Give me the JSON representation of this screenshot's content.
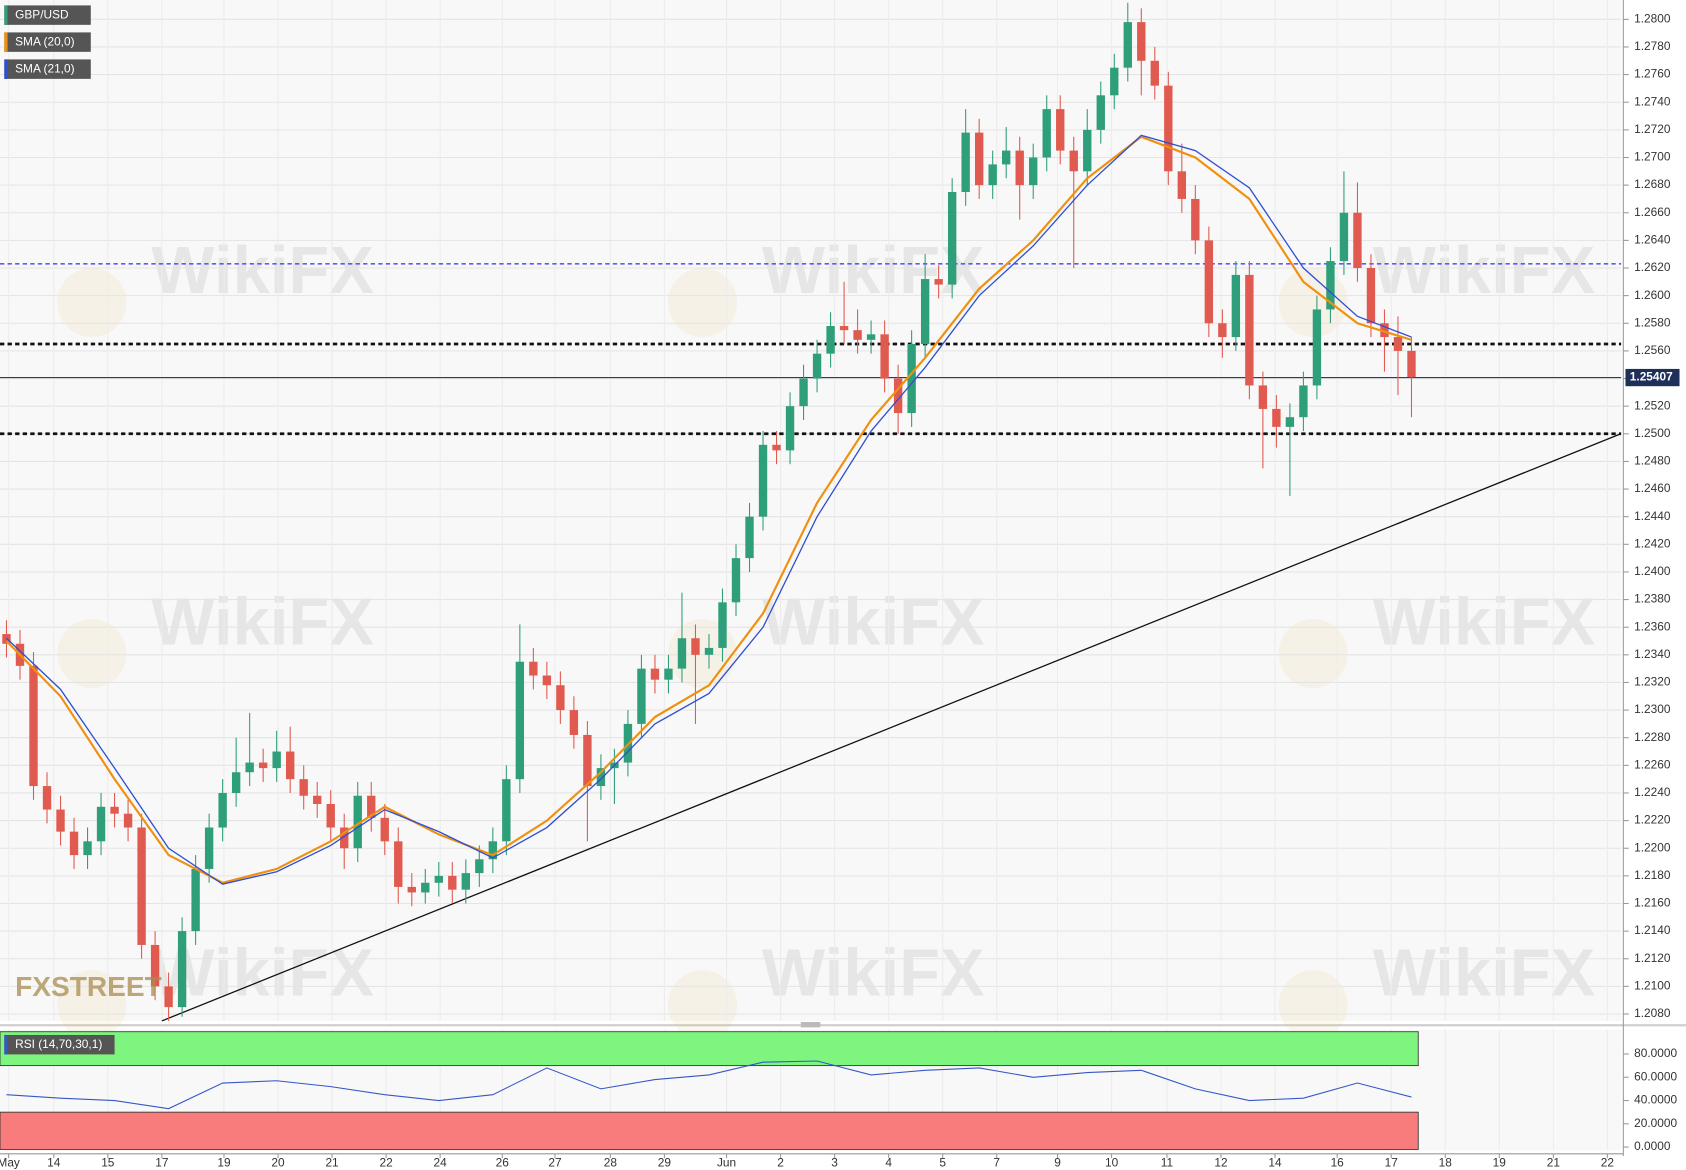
{
  "chart_data": [
    {
      "type": "candlestick",
      "symbol": "GBP/USD",
      "logo": "FXSTREET",
      "watermark": "WikiFX",
      "up_color": "#2f9e7a",
      "down_color": "#e05a4f",
      "grid": true,
      "xlim": [
        -0.48,
        119.52
      ],
      "ylim": [
        1.2075,
        1.2814
      ],
      "yticks": [
        {
          "value": 1.208,
          "label": "1.2080"
        },
        {
          "value": 1.21,
          "label": "1.2100"
        },
        {
          "value": 1.212,
          "label": "1.2120"
        },
        {
          "value": 1.214,
          "label": "1.2140"
        },
        {
          "value": 1.216,
          "label": "1.2160"
        },
        {
          "value": 1.218,
          "label": "1.2180"
        },
        {
          "value": 1.22,
          "label": "1.2200"
        },
        {
          "value": 1.222,
          "label": "1.2220"
        },
        {
          "value": 1.224,
          "label": "1.2240"
        },
        {
          "value": 1.226,
          "label": "1.2260"
        },
        {
          "value": 1.228,
          "label": "1.2280"
        },
        {
          "value": 1.23,
          "label": "1.2300"
        },
        {
          "value": 1.232,
          "label": "1.2320"
        },
        {
          "value": 1.234,
          "label": "1.2340"
        },
        {
          "value": 1.236,
          "label": "1.2360"
        },
        {
          "value": 1.238,
          "label": "1.2380"
        },
        {
          "value": 1.24,
          "label": "1.2400"
        },
        {
          "value": 1.242,
          "label": "1.2420"
        },
        {
          "value": 1.244,
          "label": "1.2440"
        },
        {
          "value": 1.246,
          "label": "1.2460"
        },
        {
          "value": 1.248,
          "label": "1.2480"
        },
        {
          "value": 1.25,
          "label": "1.2500"
        },
        {
          "value": 1.252,
          "label": "1.2520"
        },
        {
          "value": 1.254,
          "label": "1.2540"
        },
        {
          "value": 1.256,
          "label": "1.2560"
        },
        {
          "value": 1.258,
          "label": "1.2580"
        },
        {
          "value": 1.26,
          "label": "1.2600"
        },
        {
          "value": 1.262,
          "label": "1.2620"
        },
        {
          "value": 1.264,
          "label": "1.2640"
        },
        {
          "value": 1.266,
          "label": "1.2660"
        },
        {
          "value": 1.268,
          "label": "1.2680"
        },
        {
          "value": 1.27,
          "label": "1.2700"
        },
        {
          "value": 1.272,
          "label": "1.2720"
        },
        {
          "value": 1.274,
          "label": "1.2740"
        },
        {
          "value": 1.276,
          "label": "1.2760"
        },
        {
          "value": 1.278,
          "label": "1.2780"
        },
        {
          "value": 1.28,
          "label": "1.2800"
        }
      ],
      "open": [
        1.2355,
        1.2348,
        1.2332,
        1.2245,
        1.2228,
        1.2212,
        1.2195,
        1.2205,
        1.223,
        1.2225,
        1.2215,
        1.213,
        1.21,
        1.2085,
        1.214,
        1.2185,
        1.2215,
        1.224,
        1.2255,
        1.2262,
        1.2258,
        1.227,
        1.225,
        1.2238,
        1.2232,
        1.2215,
        1.22,
        1.2238,
        1.2222,
        1.2205,
        1.2172,
        1.2168,
        1.2175,
        1.218,
        1.217,
        1.2182,
        1.2192,
        1.2205,
        1.225,
        1.2335,
        1.2325,
        1.2318,
        1.23,
        1.2282,
        1.2245,
        1.2258,
        1.2262,
        1.229,
        1.233,
        1.2322,
        1.233,
        1.2352,
        1.234,
        1.2345,
        1.2378,
        1.241,
        1.244,
        1.2492,
        1.2488,
        1.252,
        1.254,
        1.2558,
        1.2578,
        1.2575,
        1.2568,
        1.2572,
        1.254,
        1.2515,
        1.2565,
        1.2612,
        1.2608,
        1.2675,
        1.2718,
        1.268,
        1.2695,
        1.2705,
        1.268,
        1.27,
        1.2735,
        1.2705,
        1.269,
        1.272,
        1.2745,
        1.2765,
        1.2798,
        1.277,
        1.2752,
        1.269,
        1.267,
        1.264,
        1.258,
        1.257,
        1.2615,
        1.2535,
        1.2518,
        1.2505,
        1.2512,
        1.2535,
        1.259,
        1.2625,
        1.266,
        1.262,
        1.258,
        1.257,
        1.256
      ],
      "high": [
        1.2365,
        1.2358,
        1.2342,
        1.2255,
        1.2238,
        1.2222,
        1.2215,
        1.224,
        1.224,
        1.2235,
        1.2225,
        1.214,
        1.211,
        1.215,
        1.2195,
        1.2225,
        1.225,
        1.228,
        1.2298,
        1.2272,
        1.2285,
        1.2288,
        1.226,
        1.2248,
        1.2242,
        1.2225,
        1.2248,
        1.2248,
        1.2232,
        1.2215,
        1.2182,
        1.2185,
        1.219,
        1.219,
        1.2192,
        1.2202,
        1.2215,
        1.226,
        1.2362,
        1.2345,
        1.2335,
        1.2328,
        1.231,
        1.2292,
        1.2268,
        1.2272,
        1.23,
        1.234,
        1.234,
        1.234,
        1.2385,
        1.2362,
        1.2355,
        1.2388,
        1.242,
        1.245,
        1.2502,
        1.2502,
        1.253,
        1.255,
        1.2568,
        1.2588,
        1.261,
        1.259,
        1.2582,
        1.2582,
        1.255,
        1.2575,
        1.263,
        1.2622,
        1.2685,
        1.2735,
        1.2728,
        1.2705,
        1.2722,
        1.2715,
        1.271,
        1.2745,
        1.2745,
        1.2715,
        1.2735,
        1.2755,
        1.2775,
        1.2812,
        1.2808,
        1.278,
        1.2762,
        1.271,
        1.268,
        1.265,
        1.259,
        1.2625,
        1.2625,
        1.2545,
        1.2528,
        1.2522,
        1.2545,
        1.26,
        1.2635,
        1.269,
        1.2682,
        1.263,
        1.259,
        1.2585,
        1.257
      ],
      "low": [
        1.2338,
        1.2322,
        1.2235,
        1.2218,
        1.2202,
        1.2185,
        1.2185,
        1.2195,
        1.2215,
        1.2205,
        1.212,
        1.209,
        1.2075,
        1.2078,
        1.213,
        1.2175,
        1.2205,
        1.223,
        1.2245,
        1.2248,
        1.2248,
        1.224,
        1.2228,
        1.2222,
        1.2205,
        1.2185,
        1.219,
        1.2212,
        1.2195,
        1.216,
        1.2158,
        1.216,
        1.2165,
        1.216,
        1.216,
        1.2172,
        1.2182,
        1.2195,
        1.224,
        1.2315,
        1.2308,
        1.229,
        1.2272,
        1.2205,
        1.2235,
        1.2232,
        1.2252,
        1.228,
        1.2312,
        1.2312,
        1.232,
        1.229,
        1.233,
        1.2335,
        1.2368,
        1.24,
        1.243,
        1.2478,
        1.2478,
        1.251,
        1.253,
        1.2548,
        1.2565,
        1.2558,
        1.2558,
        1.253,
        1.25,
        1.2505,
        1.2555,
        1.2598,
        1.2598,
        1.2665,
        1.267,
        1.267,
        1.2685,
        1.2655,
        1.267,
        1.269,
        1.2695,
        1.262,
        1.268,
        1.271,
        1.2735,
        1.2755,
        1.2745,
        1.2742,
        1.268,
        1.266,
        1.263,
        1.257,
        1.2555,
        1.256,
        1.2525,
        1.2475,
        1.249,
        1.2455,
        1.2502,
        1.2525,
        1.258,
        1.2615,
        1.261,
        1.257,
        1.2545,
        1.2528,
        1.2512
      ],
      "close": [
        1.2348,
        1.2332,
        1.2245,
        1.2228,
        1.2212,
        1.2195,
        1.2205,
        1.223,
        1.2225,
        1.2215,
        1.213,
        1.21,
        1.2085,
        1.214,
        1.2185,
        1.2215,
        1.224,
        1.2255,
        1.2262,
        1.2258,
        1.227,
        1.225,
        1.2238,
        1.2232,
        1.2215,
        1.22,
        1.2238,
        1.2222,
        1.2205,
        1.2172,
        1.2168,
        1.2175,
        1.218,
        1.217,
        1.2182,
        1.2192,
        1.2205,
        1.225,
        1.2335,
        1.2325,
        1.2318,
        1.23,
        1.2282,
        1.2245,
        1.2258,
        1.2262,
        1.229,
        1.233,
        1.2322,
        1.233,
        1.2352,
        1.234,
        1.2345,
        1.2378,
        1.241,
        1.244,
        1.2492,
        1.2488,
        1.252,
        1.254,
        1.2558,
        1.2578,
        1.2575,
        1.2568,
        1.2572,
        1.254,
        1.2515,
        1.2565,
        1.2612,
        1.2608,
        1.2675,
        1.2718,
        1.268,
        1.2695,
        1.2705,
        1.268,
        1.27,
        1.2735,
        1.2705,
        1.269,
        1.272,
        1.2745,
        1.2765,
        1.2798,
        1.277,
        1.2752,
        1.269,
        1.267,
        1.264,
        1.258,
        1.257,
        1.2615,
        1.2535,
        1.2518,
        1.2505,
        1.2512,
        1.2535,
        1.259,
        1.2625,
        1.266,
        1.262,
        1.258,
        1.257,
        1.256,
        1.2541
      ],
      "series": [
        {
          "name": "SMA (20,0)",
          "color": "#f0900f",
          "x": [
            0,
            4,
            8,
            12,
            16,
            20,
            24,
            28,
            32,
            36,
            40,
            44,
            48,
            52,
            56,
            60,
            64,
            68,
            72,
            76,
            80,
            84,
            88,
            92,
            96,
            100,
            104
          ],
          "values": [
            1.235,
            1.231,
            1.225,
            1.2195,
            1.2175,
            1.2185,
            1.2205,
            1.223,
            1.221,
            1.2195,
            1.222,
            1.2255,
            1.2295,
            1.2318,
            1.237,
            1.245,
            1.251,
            1.2555,
            1.2605,
            1.264,
            1.2685,
            1.2715,
            1.27,
            1.267,
            1.261,
            1.258,
            1.2568
          ]
        },
        {
          "name": "SMA (21,0)",
          "color": "#2f4fd0",
          "x": [
            0,
            4,
            8,
            12,
            16,
            20,
            24,
            28,
            32,
            36,
            40,
            44,
            48,
            52,
            56,
            60,
            64,
            68,
            72,
            76,
            80,
            84,
            88,
            92,
            96,
            100,
            104
          ],
          "values": [
            1.2352,
            1.2315,
            1.2258,
            1.22,
            1.2174,
            1.2183,
            1.2202,
            1.2228,
            1.2212,
            1.2193,
            1.2215,
            1.225,
            1.229,
            1.2312,
            1.236,
            1.244,
            1.2502,
            1.2548,
            1.26,
            1.2636,
            1.268,
            1.2716,
            1.2705,
            1.2678,
            1.262,
            1.2585,
            1.257
          ]
        }
      ],
      "levels": [
        {
          "value": 1.2623,
          "color": "#5a5aff",
          "style": "dotted"
        },
        {
          "value": 1.2565,
          "color": "#111111",
          "style": "dotted"
        },
        {
          "value": 1.25,
          "color": "#111111",
          "style": "dotted"
        }
      ],
      "trendline": {
        "x": [
          11.5,
          119.5
        ],
        "values": [
          1.2075,
          1.25
        ]
      },
      "last_price": 1.25407
    },
    {
      "type": "line",
      "xlim": [
        -0.48,
        119.52
      ],
      "ylim": [
        -3,
        101
      ],
      "yticks": [
        {
          "value": 0,
          "label": "0.0000"
        },
        {
          "value": 20,
          "label": "20.0000"
        },
        {
          "value": 40,
          "label": "40.0000"
        },
        {
          "value": 60,
          "label": "60.0000"
        },
        {
          "value": 80,
          "label": "80.0000"
        }
      ],
      "xticks": [
        {
          "value": 0.16,
          "label": "May"
        },
        {
          "value": 3.5,
          "label": "14"
        },
        {
          "value": 7.5,
          "label": "15"
        },
        {
          "value": 11.5,
          "label": "17"
        },
        {
          "value": 16.1,
          "label": "19"
        },
        {
          "value": 20.1,
          "label": "20"
        },
        {
          "value": 24.1,
          "label": "21"
        },
        {
          "value": 28.1,
          "label": "22"
        },
        {
          "value": 32.1,
          "label": "24"
        },
        {
          "value": 36.7,
          "label": "26"
        },
        {
          "value": 40.6,
          "label": "27"
        },
        {
          "value": 44.7,
          "label": "28"
        },
        {
          "value": 48.7,
          "label": "29"
        },
        {
          "value": 53.3,
          "label": "Jun"
        },
        {
          "value": 57.3,
          "label": "2"
        },
        {
          "value": 61.3,
          "label": "3"
        },
        {
          "value": 65.3,
          "label": "4"
        },
        {
          "value": 69.3,
          "label": "5"
        },
        {
          "value": 73.3,
          "label": "7"
        },
        {
          "value": 77.8,
          "label": "9"
        },
        {
          "value": 81.8,
          "label": "10"
        },
        {
          "value": 85.9,
          "label": "11"
        },
        {
          "value": 89.9,
          "label": "12"
        },
        {
          "value": 93.9,
          "label": "14"
        },
        {
          "value": 98.5,
          "label": "16"
        },
        {
          "value": 102.5,
          "label": "17"
        },
        {
          "value": 106.5,
          "label": "18"
        },
        {
          "value": 110.5,
          "label": "19"
        },
        {
          "value": 114.5,
          "label": "21"
        },
        {
          "value": 118.5,
          "label": "22"
        }
      ],
      "overbought": 70,
      "oversold": 30,
      "overbought_color": "#7ef57e",
      "oversold_color": "#f87c7c",
      "series": [
        {
          "name": "RSI (14,70,30,1)",
          "color": "#3556c8",
          "x": [
            0,
            4,
            8,
            12,
            16,
            20,
            24,
            28,
            32,
            36,
            40,
            44,
            48,
            52,
            56,
            60,
            64,
            68,
            72,
            76,
            80,
            84,
            88,
            92,
            96,
            100,
            104
          ],
          "values": [
            45,
            42,
            40,
            33,
            55,
            57,
            52,
            45,
            40,
            45,
            68,
            50,
            58,
            62,
            73,
            74,
            62,
            66,
            68,
            60,
            64,
            66,
            50,
            40,
            42,
            55,
            43
          ]
        }
      ]
    }
  ]
}
